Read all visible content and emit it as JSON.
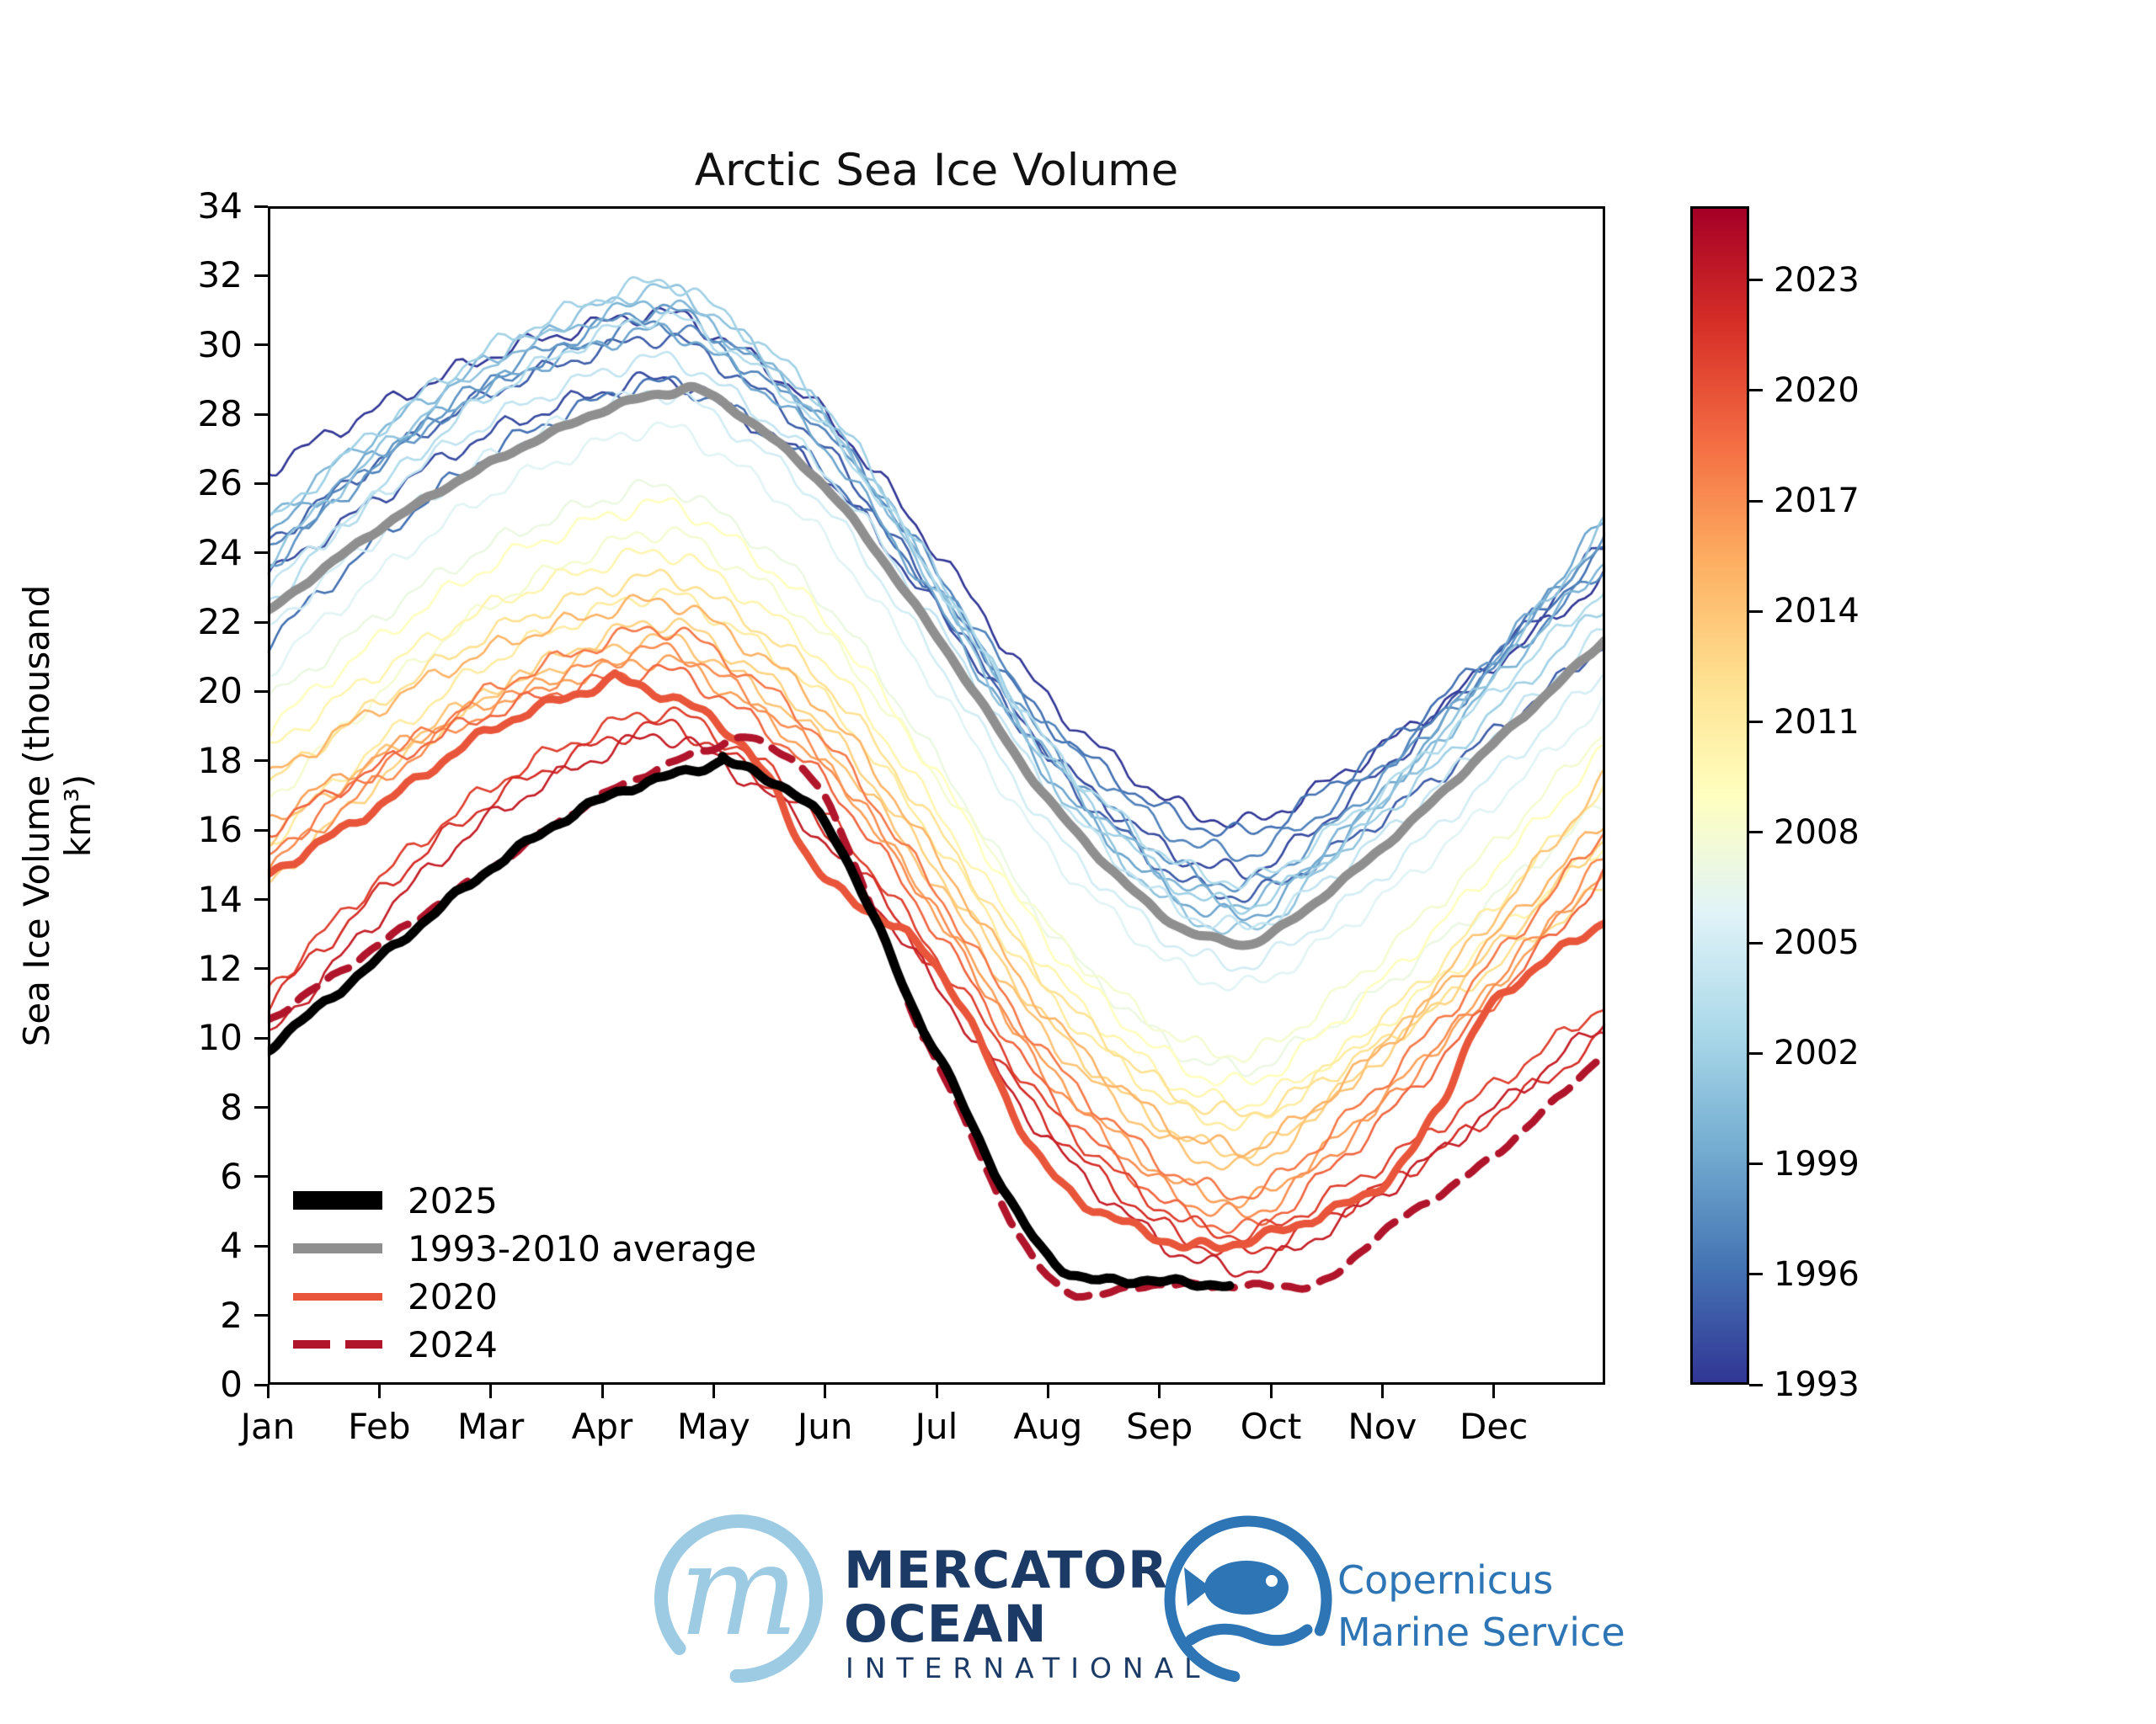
{
  "title": "Arctic Sea Ice Volume",
  "axes": {
    "ylabel": "Sea Ice Volume (thousand km³)",
    "yticks": [
      0,
      2,
      4,
      6,
      8,
      10,
      12,
      14,
      16,
      18,
      20,
      22,
      24,
      26,
      28,
      30,
      32,
      34
    ],
    "xticks": [
      "Jan",
      "Feb",
      "Mar",
      "Apr",
      "May",
      "Jun",
      "Jul",
      "Aug",
      "Sep",
      "Oct",
      "Nov",
      "Dec"
    ],
    "ylim": [
      0,
      34
    ]
  },
  "legend": {
    "items": [
      {
        "label": "2025",
        "color": "#000000",
        "swatch_h": 22,
        "dashed": false
      },
      {
        "label": "1993-2010 average",
        "color": "#8f8f8f",
        "swatch_h": 12,
        "dashed": false
      },
      {
        "label": "2020",
        "color": "#e8553a",
        "swatch_h": 9,
        "dashed": false
      },
      {
        "label": "2024",
        "color": "#b0152b",
        "swatch_h": 10,
        "dashed": true
      }
    ]
  },
  "colorbar": {
    "year_min": 1993,
    "year_max": 2025,
    "tick_years": [
      1993,
      1996,
      1999,
      2002,
      2005,
      2008,
      2011,
      2014,
      2017,
      2020,
      2023
    ]
  },
  "chart_data": {
    "type": "line",
    "title": "Arctic Sea Ice Volume",
    "xlabel_unit": "month",
    "xlabels": [
      "Jan",
      "Feb",
      "Mar",
      "Apr",
      "May",
      "Jun",
      "Jul",
      "Aug",
      "Sep",
      "Oct",
      "Nov",
      "Dec"
    ],
    "ylim": [
      0,
      34
    ],
    "colormap_stops": [
      "#313695",
      "#4575b4",
      "#74add1",
      "#abd9e9",
      "#e0f3f8",
      "#ffffbf",
      "#fee090",
      "#fdae61",
      "#f46d43",
      "#d73027",
      "#a50026"
    ],
    "series": [
      {
        "name": "1993-2010 average",
        "color": "#8f8f8f",
        "width": 11,
        "dash": null,
        "wiggle": 0.04,
        "months": [
          0,
          1,
          2,
          3,
          3.6,
          4,
          5,
          6,
          7,
          8,
          8.6,
          9,
          10,
          11,
          12
        ],
        "values": [
          22.3,
          24.7,
          26.6,
          28.1,
          28.62,
          28.5,
          25.9,
          21.6,
          16.9,
          13.6,
          12.8,
          13.0,
          15.5,
          18.5,
          21.5
        ]
      },
      {
        "name": "2020",
        "color": "#e8553a",
        "width": 9,
        "dash": null,
        "wiggle": 0.1,
        "months": [
          0,
          1,
          2,
          3,
          3.2,
          4,
          4.5,
          5,
          6,
          7,
          8,
          8.4,
          9,
          10,
          10.5,
          11,
          12
        ],
        "values": [
          14.7,
          16.7,
          18.9,
          20.2,
          20.3,
          19.2,
          17.4,
          14.6,
          12.1,
          6.2,
          4.25,
          4.0,
          4.35,
          5.8,
          8.0,
          11.0,
          13.4
        ]
      },
      {
        "name": "2024",
        "color": "#b0152b",
        "width": 9,
        "dash": [
          27,
          17
        ],
        "wiggle": 0.05,
        "months": [
          0,
          1,
          2,
          3,
          4,
          4.4,
          5,
          5.8,
          6,
          7,
          8,
          9,
          9.5,
          10,
          11,
          12
        ],
        "values": [
          10.5,
          12.7,
          14.9,
          17.0,
          18.4,
          18.55,
          16.9,
          10.6,
          9.4,
          3.1,
          2.9,
          2.85,
          3.0,
          4.4,
          6.6,
          9.6
        ]
      },
      {
        "name": "2025",
        "color": "#000000",
        "width": 11,
        "dash": null,
        "wiggle": 0.07,
        "months": [
          0,
          1,
          2,
          3,
          4,
          4.15,
          5,
          5.8,
          6,
          7,
          8,
          8.63
        ],
        "values": [
          9.7,
          12.3,
          14.9,
          16.9,
          17.9,
          17.95,
          16.2,
          10.8,
          9.6,
          3.7,
          3.0,
          2.9
        ]
      }
    ],
    "background_years": [
      {
        "year": 1993,
        "jan": 26.4,
        "peak": 30.9,
        "min": 16.3,
        "dec": 23.3
      },
      {
        "year": 1994,
        "jan": 23.3,
        "peak": 29.0,
        "min": 14.9,
        "dec": 24.3
      },
      {
        "year": 1995,
        "jan": 24.3,
        "peak": 30.2,
        "min": 14.2,
        "dec": 21.4
      },
      {
        "year": 1996,
        "jan": 21.4,
        "peak": 28.9,
        "min": 16.0,
        "dec": 24.0
      },
      {
        "year": 1997,
        "jan": 24.0,
        "peak": 30.6,
        "min": 15.4,
        "dec": 23.6
      },
      {
        "year": 1998,
        "jan": 23.6,
        "peak": 31.0,
        "min": 14.5,
        "dec": 24.5
      },
      {
        "year": 1999,
        "jan": 24.5,
        "peak": 30.4,
        "min": 13.6,
        "dec": 25.0
      },
      {
        "year": 2000,
        "jan": 25.0,
        "peak": 31.2,
        "min": 14.0,
        "dec": 23.8
      },
      {
        "year": 2001,
        "jan": 23.8,
        "peak": 31.6,
        "min": 13.2,
        "dec": 24.8
      },
      {
        "year": 2002,
        "jan": 24.8,
        "peak": 31.8,
        "min": 13.9,
        "dec": 22.5
      },
      {
        "year": 2003,
        "jan": 22.5,
        "peak": 30.8,
        "min": 14.6,
        "dec": 23.0
      },
      {
        "year": 2004,
        "jan": 23.0,
        "peak": 29.6,
        "min": 13.3,
        "dec": 21.8
      },
      {
        "year": 2005,
        "jan": 21.8,
        "peak": 28.6,
        "min": 12.2,
        "dec": 20.6
      },
      {
        "year": 2006,
        "jan": 20.6,
        "peak": 27.6,
        "min": 11.6,
        "dec": 19.7
      },
      {
        "year": 2007,
        "jan": 19.7,
        "peak": 25.9,
        "min": 9.2,
        "dec": 16.8
      },
      {
        "year": 2008,
        "jan": 16.8,
        "peak": 24.6,
        "min": 9.6,
        "dec": 18.9
      },
      {
        "year": 2009,
        "jan": 18.9,
        "peak": 25.4,
        "min": 8.8,
        "dec": 18.3
      },
      {
        "year": 2010,
        "jan": 18.3,
        "peak": 24.0,
        "min": 8.2,
        "dec": 15.6
      },
      {
        "year": 2011,
        "jan": 15.6,
        "peak": 22.8,
        "min": 7.6,
        "dec": 17.3
      },
      {
        "year": 2012,
        "jan": 17.3,
        "peak": 23.3,
        "min": 7.9,
        "dec": 14.4
      },
      {
        "year": 2013,
        "jan": 14.4,
        "peak": 22.0,
        "min": 6.8,
        "dec": 15.8
      },
      {
        "year": 2014,
        "jan": 15.8,
        "peak": 21.5,
        "min": 6.4,
        "dec": 17.5
      },
      {
        "year": 2015,
        "jan": 17.5,
        "peak": 22.6,
        "min": 6.9,
        "dec": 16.3
      },
      {
        "year": 2016,
        "jan": 16.3,
        "peak": 20.9,
        "min": 5.4,
        "dec": 14.9
      },
      {
        "year": 2017,
        "jan": 14.9,
        "peak": 21.2,
        "min": 5.0,
        "dec": 15.2
      },
      {
        "year": 2018,
        "jan": 15.2,
        "peak": 21.8,
        "min": 5.6,
        "dec": 16.0
      },
      {
        "year": 2019,
        "jan": 16.0,
        "peak": 20.6,
        "min": 4.6,
        "dec": 14.7
      },
      {
        "year": 2021,
        "jan": 11.4,
        "peak": 19.4,
        "min": 4.4,
        "dec": 11.0
      },
      {
        "year": 2022,
        "jan": 11.0,
        "peak": 19.0,
        "min": 3.9,
        "dec": 10.0
      },
      {
        "year": 2023,
        "jan": 10.0,
        "peak": 18.7,
        "min": 3.4,
        "dec": 10.5
      }
    ]
  },
  "footer": {
    "mercator": {
      "line1": "MERCATOR",
      "line2": "OCEAN",
      "line3": "INTERNATIONAL",
      "monogram": "m",
      "circle_color": "#9dcbe3",
      "text_color": "#1b3a66"
    },
    "copernicus": {
      "line1": "Copernicus",
      "line2": "Marine Service",
      "color": "#2e75b6"
    }
  }
}
